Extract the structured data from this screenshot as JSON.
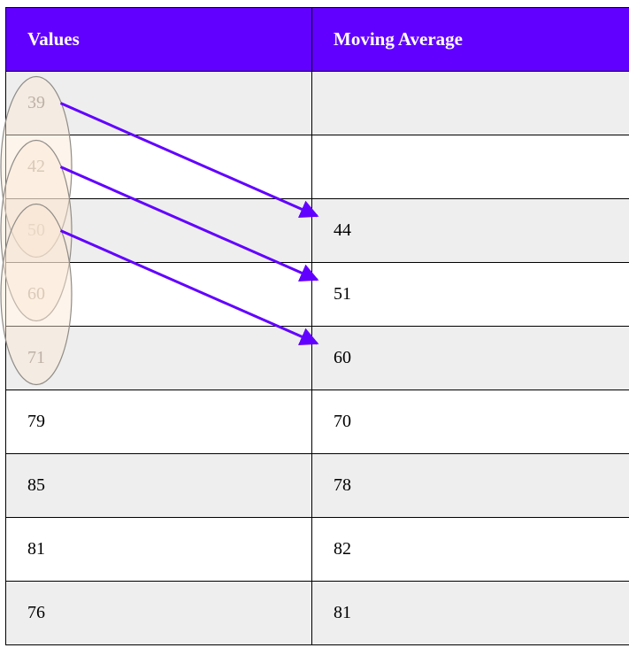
{
  "header": {
    "values": "Values",
    "moving_average": "Moving Average"
  },
  "accent_color": "#6200ff",
  "window_fill": "#fbe7d3",
  "window_stroke": "#8f8c88",
  "rows": [
    {
      "value": "39",
      "avg": ""
    },
    {
      "value": "42",
      "avg": ""
    },
    {
      "value": "50",
      "avg": "44"
    },
    {
      "value": "60",
      "avg": "51"
    },
    {
      "value": "71",
      "avg": "60"
    },
    {
      "value": "79",
      "avg": "70"
    },
    {
      "value": "85",
      "avg": "78"
    },
    {
      "value": "81",
      "avg": "82"
    },
    {
      "value": "76",
      "avg": "81"
    }
  ],
  "windows": [
    {
      "from_row": 0,
      "to_row": 2,
      "result_row": 2
    },
    {
      "from_row": 1,
      "to_row": 3,
      "result_row": 3
    },
    {
      "from_row": 2,
      "to_row": 4,
      "result_row": 4
    }
  ]
}
